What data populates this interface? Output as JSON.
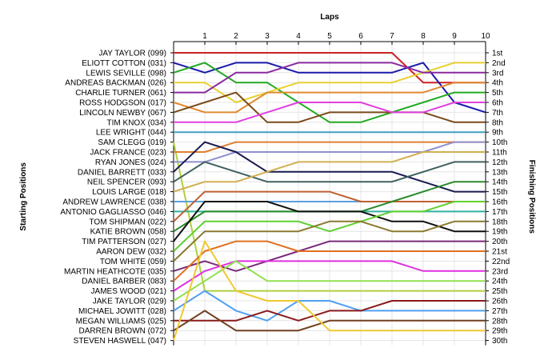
{
  "chart_data": {
    "type": "line",
    "title": "",
    "xlabel": "Laps",
    "ylabel_left": "Starting Positions",
    "ylabel_right": "Finishing Positions",
    "laps": [
      1,
      2,
      3,
      4,
      5,
      6,
      7,
      8,
      9,
      10
    ],
    "position_labels": [
      "1st",
      "2nd",
      "3rd",
      "4th",
      "5th",
      "6th",
      "7th",
      "8th",
      "9th",
      "10th",
      "11th",
      "12th",
      "13th",
      "14th",
      "15th",
      "16th",
      "17th",
      "18th",
      "19th",
      "20th",
      "21st",
      "22nd",
      "23rd",
      "24th",
      "25th",
      "26th",
      "27th",
      "28th",
      "29th",
      "30th"
    ],
    "grid": true,
    "series": [
      {
        "name": "JAY TAYLOR (099)",
        "color": "#cc2222",
        "positions": [
          1,
          1,
          1,
          1,
          1,
          1,
          1,
          1,
          4,
          4,
          4
        ]
      },
      {
        "name": "ELIOTT COTTON (031)",
        "color": "#1a1aaa",
        "positions": [
          2,
          3,
          2,
          2,
          3,
          3,
          3,
          3,
          2,
          6,
          7
        ]
      },
      {
        "name": "LEWIS SEVILLE (098)",
        "color": "#22aa22",
        "positions": [
          3,
          2,
          4,
          4,
          6,
          8,
          8,
          7,
          6,
          5,
          5
        ]
      },
      {
        "name": "ANDREAS BACKMAN (026)",
        "color": "#e8d030",
        "positions": [
          4,
          4,
          6,
          5,
          4,
          4,
          4,
          4,
          3,
          2,
          2
        ]
      },
      {
        "name": "CHARLIE TURNER (061)",
        "color": "#8a2aa0",
        "positions": [
          5,
          5,
          3,
          3,
          2,
          2,
          2,
          2,
          3,
          3,
          3
        ]
      },
      {
        "name": "ROSS HODGSON (017)",
        "color": "#e08a30",
        "positions": [
          6,
          7,
          7,
          5,
          5,
          5,
          5,
          5,
          5,
          4,
          4
        ]
      },
      {
        "name": "LINCOLN NEWBY (067)",
        "color": "#7a4a1a",
        "positions": [
          7,
          6,
          5,
          8,
          8,
          7,
          7,
          7,
          7,
          8,
          8
        ]
      },
      {
        "name": "TIM KNOX (034)",
        "color": "#e040e0",
        "positions": [
          8,
          8,
          8,
          7,
          6,
          6,
          6,
          7,
          7,
          6,
          6
        ]
      },
      {
        "name": "LEE WRIGHT (044)",
        "color": "#40a0c0",
        "positions": [
          9,
          9,
          9,
          9,
          9,
          9,
          9,
          9,
          9,
          9,
          9
        ]
      },
      {
        "name": "SAM CLEGG (019)",
        "color": "#b0d040",
        "positions": [
          10,
          25,
          25,
          25,
          25,
          25,
          25,
          25,
          25,
          25,
          25
        ]
      },
      {
        "name": "JACK FRANCE (023)",
        "color": "#e08030",
        "positions": [
          11,
          11,
          10,
          10,
          10,
          10,
          10,
          10,
          10,
          10,
          10
        ]
      },
      {
        "name": "RYAN JONES (024)",
        "color": "#9090d0",
        "positions": [
          12,
          12,
          11,
          11,
          11,
          11,
          11,
          11,
          11,
          10,
          10
        ]
      },
      {
        "name": "DANIEL BARRETT (033)",
        "color": "#1a1a50",
        "positions": [
          13,
          10,
          11,
          13,
          13,
          13,
          13,
          13,
          14,
          15,
          15
        ]
      },
      {
        "name": "NEIL SPENCER (093)",
        "color": "#406060",
        "positions": [
          14,
          12,
          13,
          14,
          14,
          14,
          14,
          14,
          13,
          12,
          12
        ]
      },
      {
        "name": "LOUIS LARGE (018)",
        "color": "#d0b050",
        "positions": [
          15,
          14,
          14,
          13,
          12,
          12,
          12,
          12,
          11,
          11,
          11
        ]
      },
      {
        "name": "ANDREW LAWRENCE (038)",
        "color": "#5aa0e0",
        "positions": [
          16,
          16,
          16,
          16,
          16,
          16,
          16,
          16,
          16,
          16,
          16
        ]
      },
      {
        "name": "ANTONIO GAGLIASSO (046)",
        "color": "#30b0a0",
        "positions": [
          17,
          17,
          17,
          17,
          17,
          17,
          17,
          17,
          17,
          17,
          17
        ]
      },
      {
        "name": "TOM SHIPMAN (022)",
        "color": "#c06030",
        "positions": [
          18,
          15,
          15,
          15,
          15,
          15,
          16,
          16,
          16,
          16,
          16
        ]
      },
      {
        "name": "KATIE BROWN (058)",
        "color": "#2a8a2a",
        "positions": [
          19,
          17,
          17,
          17,
          17,
          17,
          17,
          16,
          15,
          14,
          14
        ]
      },
      {
        "name": "TIM PATTERSON (027)",
        "color": "#101010",
        "positions": [
          20,
          16,
          16,
          16,
          17,
          17,
          17,
          18,
          18,
          19,
          19
        ]
      },
      {
        "name": "AARON DEW (032)",
        "color": "#60d030",
        "positions": [
          21,
          18,
          18,
          18,
          18,
          19,
          18,
          17,
          17,
          16,
          16
        ]
      },
      {
        "name": "TOM WHITE (059)",
        "color": "#8a7a30",
        "positions": [
          22,
          19,
          19,
          19,
          19,
          18,
          18,
          19,
          19,
          18,
          18
        ]
      },
      {
        "name": "MARTIN HEATHCOTE (035)",
        "color": "#7a2a7a",
        "positions": [
          23,
          22,
          23,
          22,
          21,
          20,
          20,
          20,
          20,
          20,
          20
        ]
      },
      {
        "name": "DANIEL BARBER (083)",
        "color": "#e07020",
        "positions": [
          24,
          21,
          20,
          20,
          21,
          21,
          21,
          21,
          21,
          21,
          21
        ]
      },
      {
        "name": "JAMES WOOD (021)",
        "color": "#e030e0",
        "positions": [
          25,
          23,
          22,
          22,
          22,
          22,
          22,
          22,
          23,
          23,
          23
        ]
      },
      {
        "name": "JAKE TAYLOR (029)",
        "color": "#90e050",
        "positions": [
          26,
          24,
          22,
          24,
          24,
          24,
          24,
          24,
          24,
          24,
          24
        ]
      },
      {
        "name": "MICHAEL JOWITT (028)",
        "color": "#50a0f0",
        "positions": [
          27,
          25,
          27,
          28,
          26,
          26,
          27,
          27,
          27,
          27,
          27
        ]
      },
      {
        "name": "MEGAN WILLIAMS (025)",
        "color": "#8a1a1a",
        "positions": [
          28,
          28,
          28,
          27,
          28,
          27,
          27,
          26,
          26,
          26,
          26
        ]
      },
      {
        "name": "DARREN BROWN (072)",
        "color": "#704020",
        "positions": [
          29,
          27,
          29,
          29,
          29,
          28,
          28,
          28,
          28,
          28,
          28
        ]
      },
      {
        "name": "STEVEN HASWELL (047)",
        "color": "#f0c830",
        "positions": [
          30,
          20,
          25,
          26,
          26,
          29,
          29,
          29,
          29,
          29,
          29
        ]
      }
    ]
  }
}
